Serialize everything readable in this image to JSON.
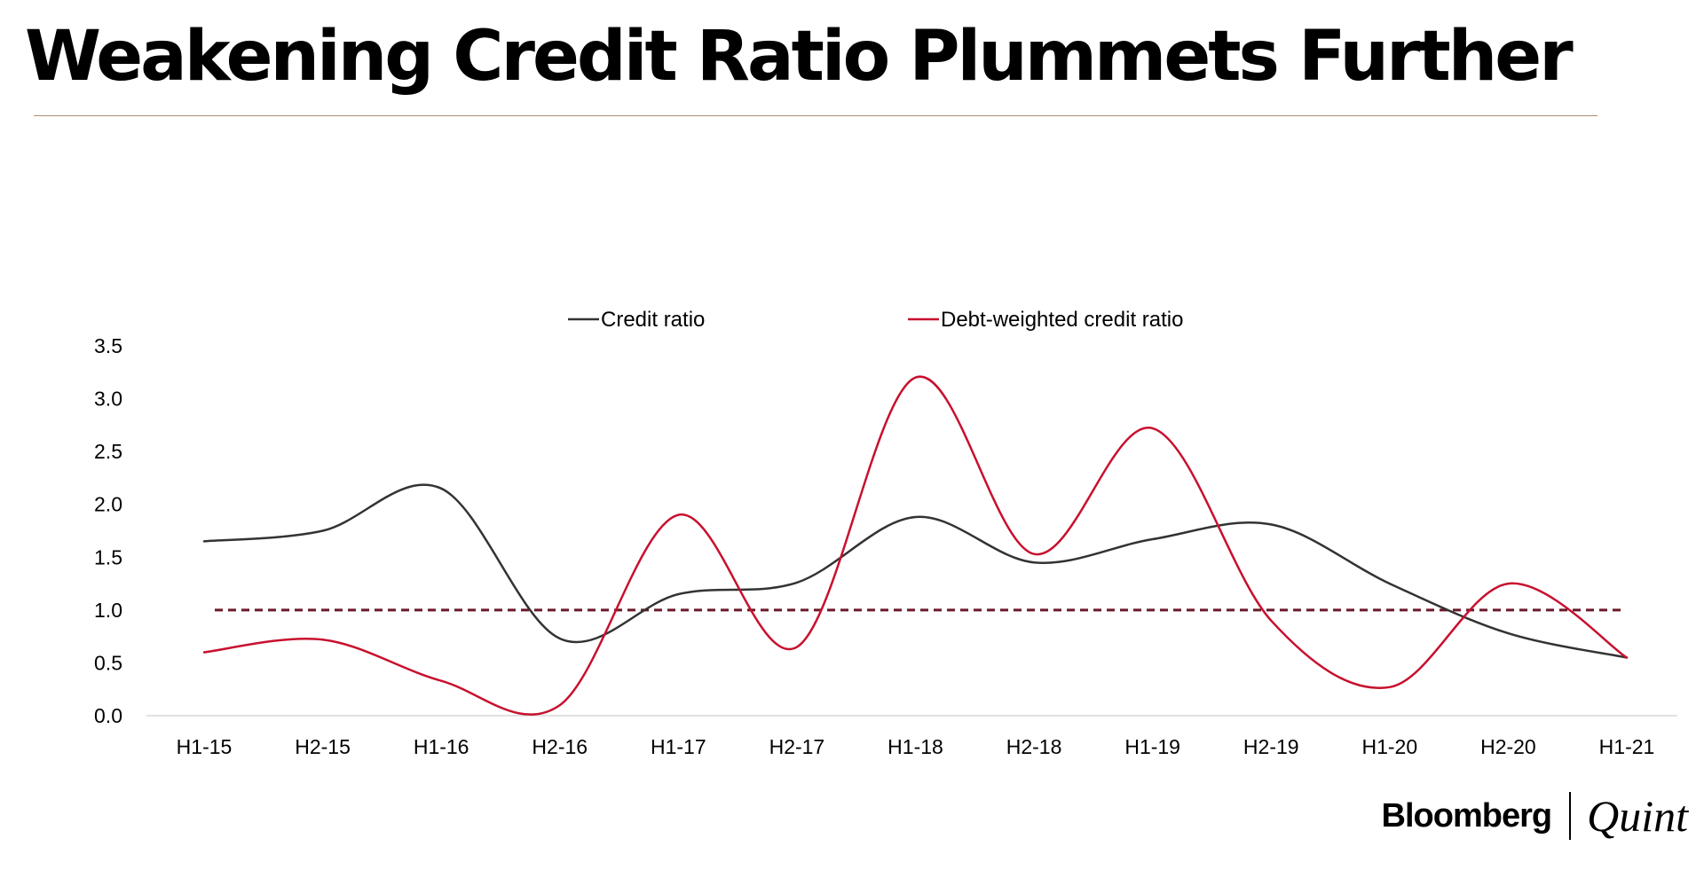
{
  "header": {
    "title": "Weakening Credit Ratio Plummets Further"
  },
  "brand": {
    "primary": "Bloomberg",
    "secondary": "Quint"
  },
  "chart_data": {
    "type": "line",
    "title": "Weakening Credit Ratio Plummets Further",
    "xlabel": "",
    "ylabel": "",
    "categories": [
      "H1-15",
      "H2-15",
      "H1-16",
      "H2-16",
      "H1-17",
      "H2-17",
      "H1-18",
      "H2-18",
      "H1-19",
      "H2-19",
      "H1-20",
      "H2-20",
      "H1-21"
    ],
    "ylim": [
      0,
      3.5
    ],
    "yticks": [
      "0.0",
      "0.5",
      "1.0",
      "1.5",
      "2.0",
      "2.5",
      "3.0",
      "3.5"
    ],
    "grid": false,
    "legend_position": "top",
    "smooth": true,
    "series": [
      {
        "name": "Credit ratio",
        "color": "#333333",
        "values": [
          1.65,
          1.75,
          2.15,
          0.73,
          1.15,
          1.26,
          1.88,
          1.45,
          1.67,
          1.81,
          1.25,
          0.78,
          0.55
        ]
      },
      {
        "name": "Debt-weighted credit ratio",
        "color": "#c8102e",
        "values": [
          0.6,
          0.72,
          0.33,
          0.1,
          1.9,
          0.65,
          3.2,
          1.53,
          2.72,
          0.9,
          0.27,
          1.25,
          0.55
        ]
      }
    ],
    "reference_line": {
      "value": 1.0,
      "color": "#6b1a2a",
      "style": "dashed"
    }
  }
}
